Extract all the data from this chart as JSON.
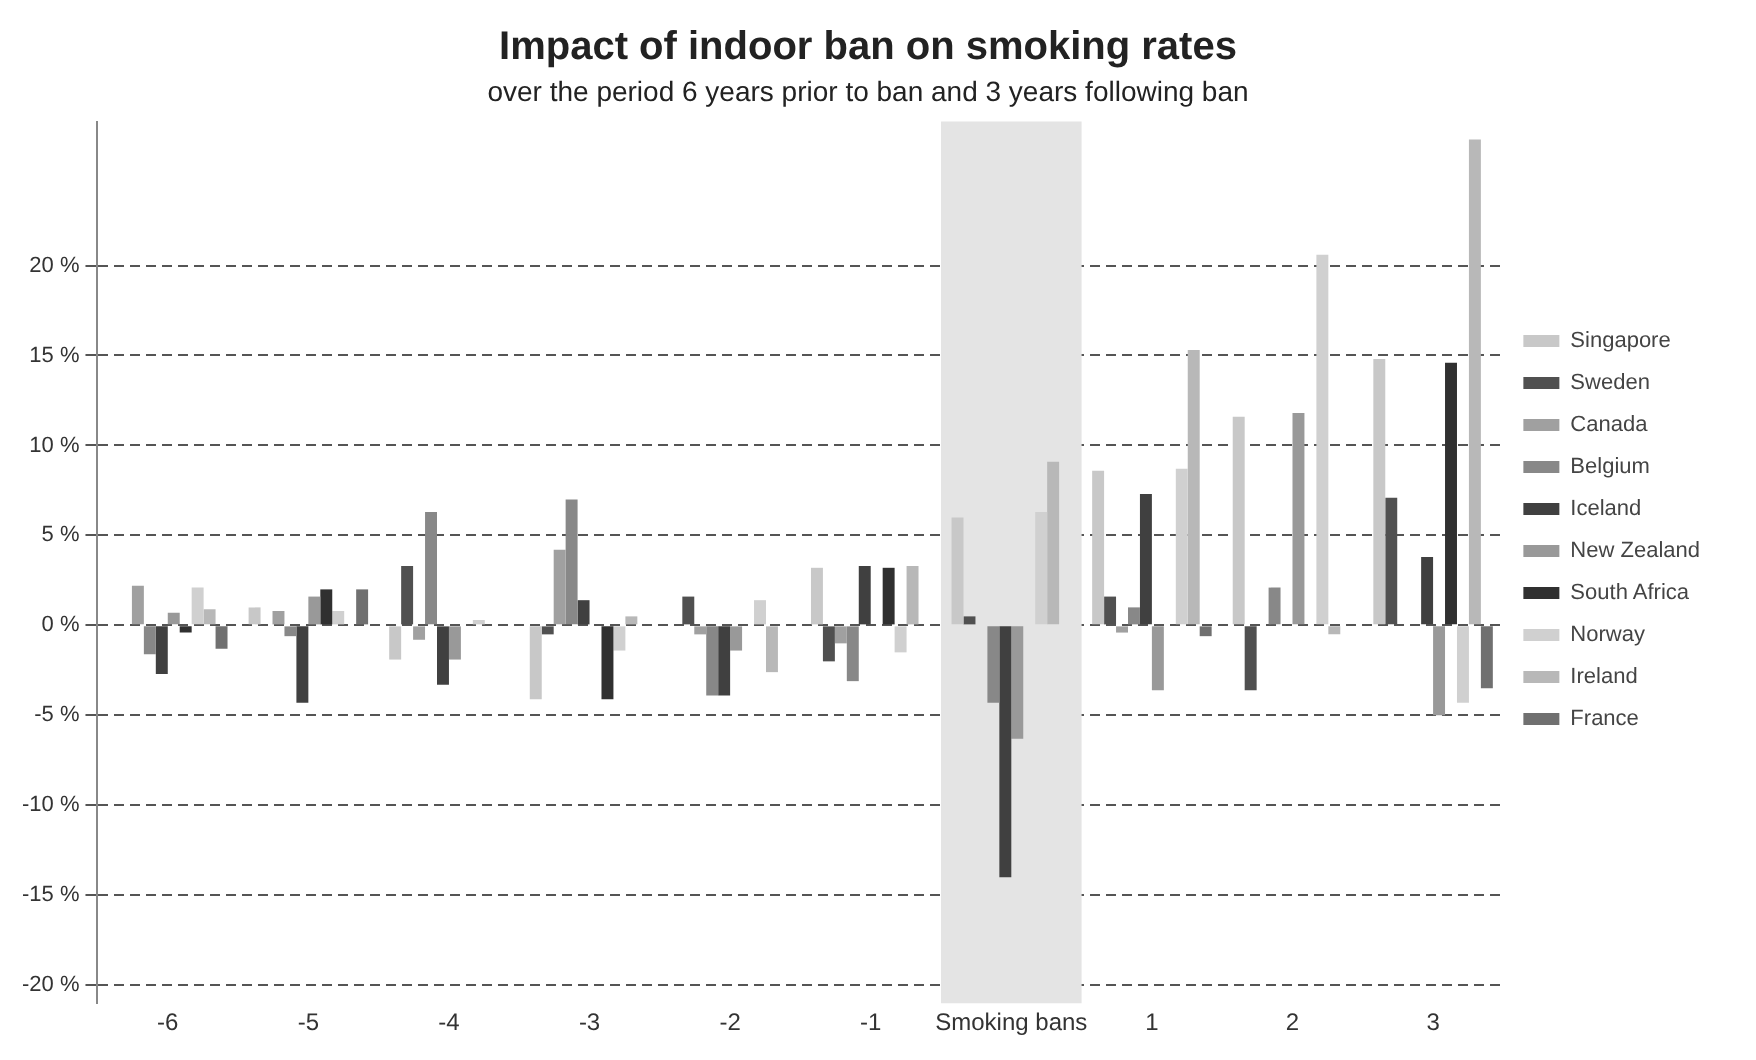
{
  "chart_data": {
    "type": "bar",
    "title": "Impact of indoor ban on smoking rates",
    "subtitle": "over the period 6 years prior to ban and 3 years following ban",
    "categories": [
      "-6",
      "-5",
      "-4",
      "-3",
      "-2",
      "-1",
      "Smoking bans",
      "1",
      "2",
      "3"
    ],
    "series": [
      {
        "name": "Singapore",
        "color": "#c8c8c8",
        "values": [
          0,
          1.0,
          -1.9,
          -4.1,
          0,
          3.2,
          6.0,
          8.6,
          11.6,
          14.8
        ]
      },
      {
        "name": "Sweden",
        "color": "#505050",
        "values": [
          0,
          0,
          3.3,
          -0.5,
          1.6,
          -2.0,
          0.5,
          1.6,
          -3.6,
          7.1
        ]
      },
      {
        "name": "Canada",
        "color": "#a0a0a0",
        "values": [
          2.2,
          0.8,
          -0.8,
          4.2,
          -0.5,
          -1.0,
          0,
          -0.4,
          0,
          0
        ]
      },
      {
        "name": "Belgium",
        "color": "#888888",
        "values": [
          -1.6,
          -0.6,
          6.3,
          7.0,
          -3.9,
          -3.1,
          -4.3,
          1.0,
          2.1,
          0
        ]
      },
      {
        "name": "Iceland",
        "color": "#404040",
        "values": [
          -2.7,
          -4.3,
          -3.3,
          1.4,
          -3.9,
          3.3,
          -14.0,
          7.3,
          0,
          3.8
        ]
      },
      {
        "name": "New Zealand",
        "color": "#999999",
        "values": [
          0.7,
          1.6,
          -1.9,
          0,
          -1.4,
          0,
          -6.3,
          -3.6,
          11.8,
          -5.0
        ]
      },
      {
        "name": "South Africa",
        "color": "#303030",
        "values": [
          -0.4,
          2.0,
          0,
          -4.1,
          0,
          3.2,
          0,
          0,
          0,
          14.6
        ]
      },
      {
        "name": "Norway",
        "color": "#d0d0d0",
        "values": [
          2.1,
          0.8,
          0.3,
          -1.4,
          1.4,
          -1.5,
          6.3,
          8.7,
          20.6,
          -4.3
        ]
      },
      {
        "name": "Ireland",
        "color": "#b8b8b8",
        "values": [
          0.9,
          0,
          0,
          0.5,
          -2.6,
          3.3,
          9.1,
          15.3,
          -0.5,
          27
        ]
      },
      {
        "name": "France",
        "color": "#707070",
        "values": [
          -1.3,
          2.0,
          0,
          0,
          0,
          0,
          0,
          -0.6,
          0,
          -3.5
        ]
      }
    ],
    "ylim": [
      -21,
      28
    ],
    "yticks": [
      {
        "value": -20,
        "label": "-20 %"
      },
      {
        "value": -15,
        "label": "-15 %"
      },
      {
        "value": -10,
        "label": "-10 %"
      },
      {
        "value": -5,
        "label": "-5 %"
      },
      {
        "value": 0,
        "label": "0 %"
      },
      {
        "value": 5,
        "label": "5 %"
      },
      {
        "value": 10,
        "label": "10 %"
      },
      {
        "value": 15,
        "label": "15 %"
      },
      {
        "value": 20,
        "label": "20 %"
      }
    ],
    "bands": [
      {
        "axis": "x",
        "from": "Smoking bans",
        "to": "Smoking bans",
        "color": "#e4e4e4"
      }
    ],
    "grid": "y",
    "line_style": "dashed",
    "legend": "right"
  }
}
